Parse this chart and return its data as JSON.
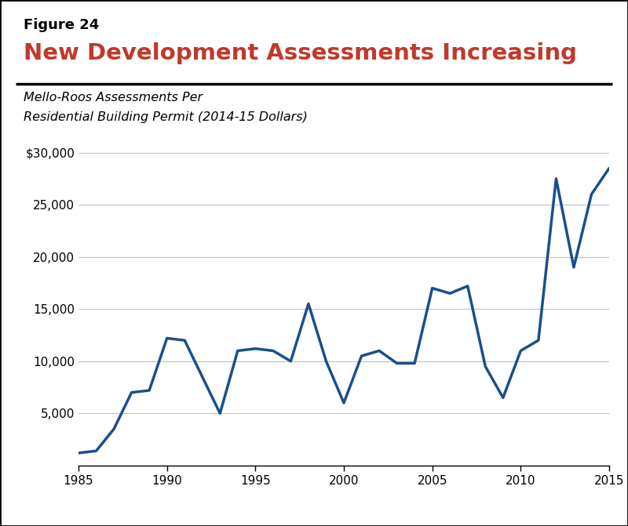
{
  "figure_label": "Figure 24",
  "title": "New Development Assessments Increasing",
  "subtitle_line1": "Mello-Roos Assessments Per",
  "subtitle_line2": "Residential Building Permit (2014-15 Dollars)",
  "line_color": "#1a4f8a",
  "line_width": 2.5,
  "background_color": "#ffffff",
  "title_color": "#c0392b",
  "figure_label_color": "#000000",
  "years": [
    1985,
    1986,
    1987,
    1988,
    1989,
    1990,
    1991,
    1992,
    1993,
    1994,
    1995,
    1996,
    1997,
    1998,
    1999,
    2000,
    2001,
    2002,
    2003,
    2004,
    2005,
    2006,
    2007,
    2008,
    2009,
    2010,
    2011,
    2012,
    2013,
    2014,
    2015
  ],
  "values": [
    1200,
    1400,
    3500,
    7000,
    7200,
    12200,
    12000,
    8500,
    5000,
    11000,
    11200,
    11000,
    10000,
    15500,
    10000,
    6000,
    10500,
    11000,
    9800,
    9800,
    17000,
    16500,
    17200,
    9500,
    6500,
    11000,
    12000,
    27500,
    19000,
    26000,
    28500
  ],
  "xlim": [
    1985,
    2015
  ],
  "ylim": [
    0,
    30000
  ],
  "xticks": [
    1985,
    1990,
    1995,
    2000,
    2005,
    2010,
    2015
  ],
  "yticks": [
    0,
    5000,
    10000,
    15000,
    20000,
    25000,
    30000
  ],
  "ytick_labels": [
    "",
    "5,000",
    "10,000",
    "15,000",
    "20,000",
    "25,000",
    "$30,000"
  ],
  "grid_color": "#c0c0c0",
  "border_color": "#000000",
  "outer_border_linewidth": 2.0,
  "thick_line_linewidth": 2.5
}
